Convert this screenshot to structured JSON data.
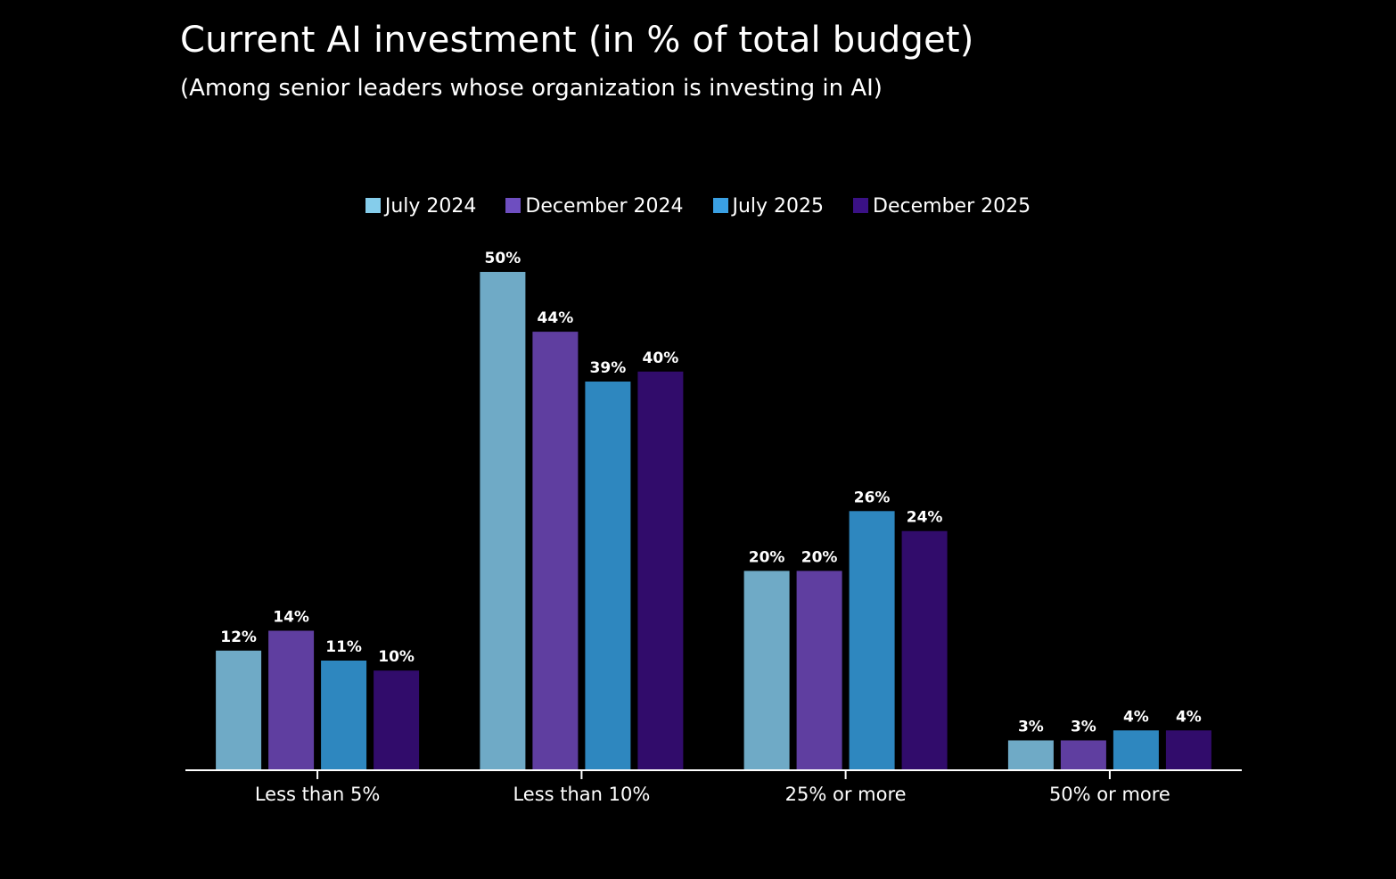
{
  "chart_data": {
    "type": "bar",
    "title": "Current AI investment (in % of total budget)",
    "subtitle": "(Among senior leaders whose organization is investing in AI)",
    "xlabel": "",
    "ylabel": "",
    "ylim": [
      0,
      50
    ],
    "grid": false,
    "legend_position": "top-center",
    "categories": [
      "Less than 5%",
      "Less than 10%",
      "25% or more",
      "50% or more"
    ],
    "series": [
      {
        "name": "July 2024",
        "values": [
          12,
          50,
          20,
          3
        ],
        "labels": [
          "12%",
          "50%",
          "20%",
          "3%"
        ],
        "color": "#6faac6",
        "legend_color": "#85cdeb"
      },
      {
        "name": "December 2024",
        "values": [
          14,
          44,
          20,
          3
        ],
        "labels": [
          "14%",
          "44%",
          "20%",
          "3%"
        ],
        "color": "#5f3ea0",
        "legend_color": "#6e4ec0"
      },
      {
        "name": "July 2025",
        "values": [
          11,
          39,
          26,
          4
        ],
        "labels": [
          "11%",
          "39%",
          "26%",
          "4%"
        ],
        "color": "#2e87bf",
        "legend_color": "#3aa0e3"
      },
      {
        "name": "December 2025",
        "values": [
          10,
          40,
          24,
          4
        ],
        "labels": [
          "10%",
          "40%",
          "24%",
          "4%"
        ],
        "color": "#310c6b",
        "legend_color": "#3a1185"
      }
    ]
  }
}
